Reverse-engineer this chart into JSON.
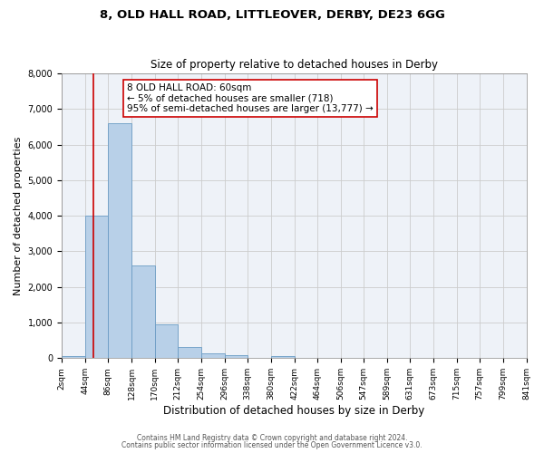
{
  "title1": "8, OLD HALL ROAD, LITTLEOVER, DERBY, DE23 6GG",
  "title2": "Size of property relative to detached houses in Derby",
  "xlabel": "Distribution of detached houses by size in Derby",
  "ylabel": "Number of detached properties",
  "bin_edges": [
    2,
    44,
    86,
    128,
    170,
    212,
    254,
    296,
    338,
    380,
    422,
    464,
    506,
    547,
    589,
    631,
    673,
    715,
    757,
    799,
    841
  ],
  "bin_heights": [
    60,
    4000,
    6600,
    2600,
    960,
    320,
    130,
    75,
    0,
    60,
    0,
    0,
    0,
    0,
    0,
    0,
    0,
    0,
    0,
    0
  ],
  "bar_color": "#b8d0e8",
  "bar_edge_color": "#6b9cc4",
  "bar_edge_width": 0.6,
  "property_line_x": 60,
  "property_line_color": "#cc0000",
  "annotation_line1": "8 OLD HALL ROAD: 60sqm",
  "annotation_line2": "← 5% of detached houses are smaller (718)",
  "annotation_line3": "95% of semi-detached houses are larger (13,777) →",
  "ylim": [
    0,
    8000
  ],
  "yticks": [
    0,
    1000,
    2000,
    3000,
    4000,
    5000,
    6000,
    7000,
    8000
  ],
  "grid_color": "#cccccc",
  "bg_color": "#eef2f8",
  "tick_labels": [
    "2sqm",
    "44sqm",
    "86sqm",
    "128sqm",
    "170sqm",
    "212sqm",
    "254sqm",
    "296sqm",
    "338sqm",
    "380sqm",
    "422sqm",
    "464sqm",
    "506sqm",
    "547sqm",
    "589sqm",
    "631sqm",
    "673sqm",
    "715sqm",
    "757sqm",
    "799sqm",
    "841sqm"
  ],
  "footer1": "Contains HM Land Registry data © Crown copyright and database right 2024.",
  "footer2": "Contains public sector information licensed under the Open Government Licence v3.0.",
  "title1_fontsize": 9.5,
  "title2_fontsize": 8.5,
  "xlabel_fontsize": 8.5,
  "ylabel_fontsize": 8,
  "tick_fontsize": 6.5,
  "annotation_fontsize": 7.5,
  "footer_fontsize": 5.5
}
